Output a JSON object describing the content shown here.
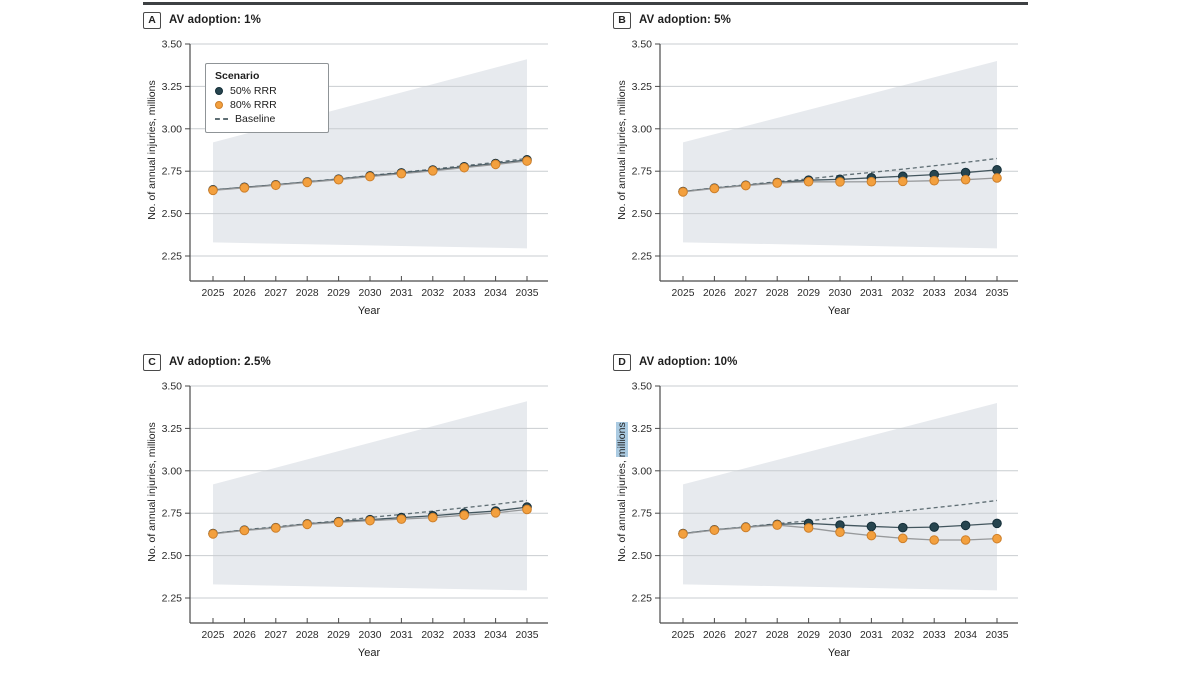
{
  "figure": {
    "top_rule_color": "#3d4043",
    "legend": {
      "title": "Scenario",
      "position": "top-left-panel-A",
      "items": [
        {
          "label": "50% RRR",
          "swatch": "dot",
          "color_key": "rrr50"
        },
        {
          "label": "80% RRR",
          "swatch": "dot",
          "color_key": "rrr80"
        },
        {
          "label": "Baseline",
          "swatch": "dash",
          "color_key": "baseline"
        }
      ]
    }
  },
  "axes": {
    "ylabel_prefix": "No. of annual injuries, ",
    "ylabel_highlight_word": "millions",
    "xlabel": "Year",
    "y_ticks": [
      "3.50",
      "3.25",
      "3.00",
      "2.75",
      "2.50",
      "2.25"
    ],
    "ylim": [
      2.25,
      3.5
    ],
    "x_ticks": [
      "2025",
      "2026",
      "2027",
      "2028",
      "2029",
      "2030",
      "2031",
      "2032",
      "2033",
      "2034",
      "2035"
    ],
    "grid": true
  },
  "colors": {
    "text": "#2b2b2b",
    "axis": "#4a4a4a",
    "grid": "#c9cdd0",
    "band": "#e7eaee",
    "highlight": "#abcbe2",
    "series": {
      "baseline": {
        "line": "#5f6e74"
      },
      "rrr50": {
        "line": "#43565e",
        "fill": "#27454f",
        "stroke": "#142e38"
      },
      "rrr80": {
        "line": "#97999b",
        "fill": "#f3a03e",
        "stroke": "#cd7f2a"
      }
    }
  },
  "chart_data": [
    {
      "type": "line",
      "panel_label": "A",
      "title": "AV adoption: 1%",
      "xlabel": "Year",
      "ylabel": "No. of annual injuries, millions",
      "ylim": [
        2.25,
        3.5
      ],
      "ylabel_highlight": false,
      "x": [
        2025,
        2026,
        2027,
        2028,
        2029,
        2030,
        2031,
        2032,
        2033,
        2034,
        2035
      ],
      "series": [
        {
          "name": "Baseline",
          "style": "dashed",
          "color_key": "baseline",
          "values": [
            2.64,
            2.655,
            2.67,
            2.688,
            2.705,
            2.725,
            2.743,
            2.762,
            2.782,
            2.802,
            2.825
          ]
        },
        {
          "name": "50% RRR",
          "style": "dot",
          "color_key": "rrr50",
          "values": [
            2.64,
            2.655,
            2.67,
            2.687,
            2.703,
            2.722,
            2.74,
            2.757,
            2.776,
            2.795,
            2.817
          ]
        },
        {
          "name": "80% RRR",
          "style": "dot",
          "color_key": "rrr80",
          "values": [
            2.637,
            2.652,
            2.667,
            2.684,
            2.7,
            2.718,
            2.735,
            2.752,
            2.771,
            2.79,
            2.81
          ]
        }
      ],
      "uncertainty_band": {
        "x": [
          2025,
          2035
        ],
        "lower": [
          2.33,
          2.295
        ],
        "upper": [
          2.92,
          3.41
        ]
      }
    },
    {
      "type": "line",
      "panel_label": "B",
      "title": "AV adoption: 5%",
      "xlabel": "Year",
      "ylabel": "No. of annual injuries, millions",
      "ylim": [
        2.25,
        3.5
      ],
      "ylabel_highlight": false,
      "x": [
        2025,
        2026,
        2027,
        2028,
        2029,
        2030,
        2031,
        2032,
        2033,
        2034,
        2035
      ],
      "series": [
        {
          "name": "Baseline",
          "style": "dashed",
          "color_key": "baseline",
          "values": [
            2.63,
            2.652,
            2.67,
            2.688,
            2.705,
            2.725,
            2.743,
            2.762,
            2.782,
            2.802,
            2.825
          ]
        },
        {
          "name": "50% RRR",
          "style": "dot",
          "color_key": "rrr50",
          "values": [
            2.63,
            2.65,
            2.667,
            2.683,
            2.697,
            2.702,
            2.711,
            2.72,
            2.73,
            2.742,
            2.758
          ]
        },
        {
          "name": "80% RRR",
          "style": "dot",
          "color_key": "rrr80",
          "values": [
            2.628,
            2.648,
            2.665,
            2.68,
            2.688,
            2.687,
            2.688,
            2.69,
            2.694,
            2.7,
            2.71
          ]
        }
      ],
      "uncertainty_band": {
        "x": [
          2025,
          2035
        ],
        "lower": [
          2.33,
          2.295
        ],
        "upper": [
          2.92,
          3.4
        ]
      }
    },
    {
      "type": "line",
      "panel_label": "C",
      "title": "AV adoption: 2.5%",
      "xlabel": "Year",
      "ylabel": "No. of annual injuries, millions",
      "ylim": [
        2.25,
        3.5
      ],
      "ylabel_highlight": false,
      "x": [
        2025,
        2026,
        2027,
        2028,
        2029,
        2030,
        2031,
        2032,
        2033,
        2034,
        2035
      ],
      "series": [
        {
          "name": "Baseline",
          "style": "dashed",
          "color_key": "baseline",
          "values": [
            2.63,
            2.652,
            2.67,
            2.688,
            2.705,
            2.725,
            2.743,
            2.762,
            2.782,
            2.802,
            2.825
          ]
        },
        {
          "name": "50% RRR",
          "style": "dot",
          "color_key": "rrr50",
          "values": [
            2.63,
            2.65,
            2.665,
            2.687,
            2.7,
            2.712,
            2.724,
            2.735,
            2.75,
            2.763,
            2.786
          ]
        },
        {
          "name": "80% RRR",
          "style": "dot",
          "color_key": "rrr80",
          "values": [
            2.628,
            2.648,
            2.663,
            2.684,
            2.696,
            2.706,
            2.715,
            2.724,
            2.738,
            2.752,
            2.772
          ]
        }
      ],
      "uncertainty_band": {
        "x": [
          2025,
          2035
        ],
        "lower": [
          2.33,
          2.295
        ],
        "upper": [
          2.92,
          3.41
        ]
      }
    },
    {
      "type": "line",
      "panel_label": "D",
      "title": "AV adoption: 10%",
      "xlabel": "Year",
      "ylabel": "No. of annual injuries, millions",
      "ylim": [
        2.25,
        3.5
      ],
      "ylabel_highlight": true,
      "x": [
        2025,
        2026,
        2027,
        2028,
        2029,
        2030,
        2031,
        2032,
        2033,
        2034,
        2035
      ],
      "series": [
        {
          "name": "Baseline",
          "style": "dashed",
          "color_key": "baseline",
          "values": [
            2.63,
            2.652,
            2.67,
            2.688,
            2.705,
            2.725,
            2.743,
            2.762,
            2.782,
            2.802,
            2.825
          ]
        },
        {
          "name": "50% RRR",
          "style": "dot",
          "color_key": "rrr50",
          "values": [
            2.63,
            2.652,
            2.668,
            2.684,
            2.69,
            2.68,
            2.672,
            2.665,
            2.668,
            2.678,
            2.69
          ]
        },
        {
          "name": "80% RRR",
          "style": "dot",
          "color_key": "rrr80",
          "values": [
            2.628,
            2.65,
            2.666,
            2.68,
            2.663,
            2.638,
            2.618,
            2.602,
            2.592,
            2.592,
            2.6
          ]
        }
      ],
      "uncertainty_band": {
        "x": [
          2025,
          2035
        ],
        "lower": [
          2.33,
          2.295
        ],
        "upper": [
          2.92,
          3.4
        ]
      }
    }
  ]
}
